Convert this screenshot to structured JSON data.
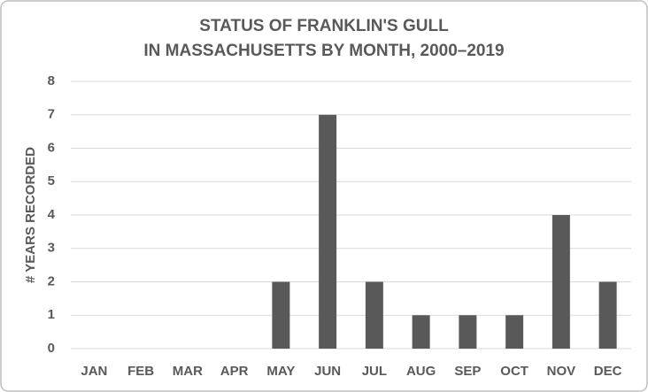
{
  "chart_data": {
    "type": "bar",
    "title": [
      "STATUS OF FRANKLIN'S GULL",
      "IN MASSACHUSETTS BY MONTH, 2000–2019"
    ],
    "y_label": "# YEARS RECORDED",
    "categories": [
      "JAN",
      "FEB",
      "MAR",
      "APR",
      "MAY",
      "JUN",
      "JUL",
      "AUG",
      "SEP",
      "OCT",
      "NOV",
      "DEC"
    ],
    "values": [
      0,
      0,
      0,
      0,
      2,
      7,
      2,
      1,
      1,
      1,
      4,
      2
    ],
    "color": "#595959",
    "ylim": [
      0,
      8
    ],
    "yticks": [
      0,
      1,
      2,
      3,
      4,
      5,
      6,
      7,
      8
    ],
    "grid": true
  }
}
